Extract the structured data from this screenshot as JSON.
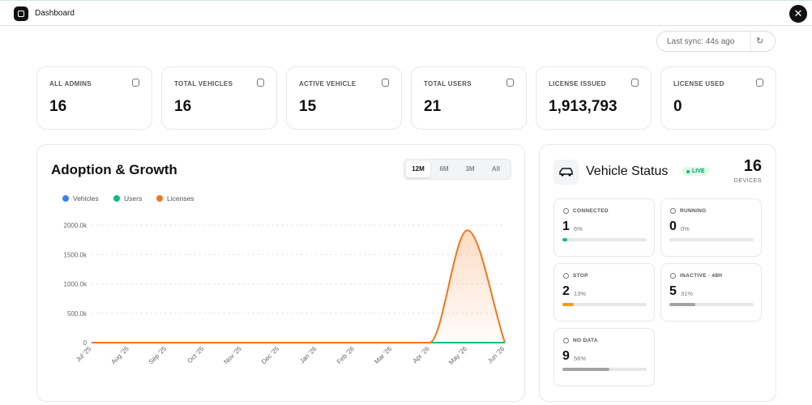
{
  "header": {
    "title": "Dashboard"
  },
  "sync": "Last sync: 44s ago",
  "stats": [
    {
      "label": "ALL ADMINS",
      "value": "16"
    },
    {
      "label": "TOTAL VEHICLES",
      "value": "16"
    },
    {
      "label": "ACTIVE VEHICLE",
      "value": "15"
    },
    {
      "label": "TOTAL USERS",
      "value": "21"
    },
    {
      "label": "LICENSE ISSUED",
      "value": "1,913,793"
    },
    {
      "label": "LICENSE USED",
      "value": "0"
    }
  ],
  "ranges": [
    "12M",
    "6M",
    "3M",
    "All"
  ],
  "chart_data": {
    "type": "line",
    "title": "Adoption & Growth",
    "categories": [
      "Jul '25",
      "Aug '25",
      "Sep '25",
      "Oct '25",
      "Nov '25",
      "Dec '25",
      "Jan '26",
      "Feb '26",
      "Mar '26",
      "Apr '26",
      "May '26",
      "Jun '26"
    ],
    "series": [
      {
        "name": "Vehicles",
        "color": "#3b82f6",
        "values": [
          0,
          0,
          0,
          0,
          0,
          0,
          0,
          0,
          0,
          0,
          16,
          0
        ]
      },
      {
        "name": "Users",
        "color": "#10b981",
        "values": [
          0,
          0,
          0,
          0,
          0,
          0,
          0,
          0,
          0,
          0,
          21,
          0
        ]
      },
      {
        "name": "Licenses",
        "color": "#f97316",
        "values": [
          0,
          0,
          0,
          0,
          0,
          0,
          0,
          0,
          0,
          0,
          1913793,
          0
        ]
      }
    ],
    "ylim": [
      0,
      2000000
    ],
    "yticks": [
      0,
      {
        "value": 500000,
        "label": "500.0k"
      },
      {
        "value": 1000000,
        "label": "1000.0k"
      },
      {
        "value": 1500000,
        "label": "1500.0k"
      },
      {
        "value": 2000000,
        "label": "2000.0k"
      }
    ],
    "grid": true
  },
  "vehicle_status": {
    "title": "Vehicle Status",
    "badge": "LIVE",
    "total": "16",
    "total_label": "DEVICES",
    "tiles": [
      {
        "label": "CONNECTED",
        "count": "1",
        "percent": "6%",
        "color": "#10b981"
      },
      {
        "label": "RUNNING",
        "count": "0",
        "percent": "0%",
        "color": "#a3a3a3"
      },
      {
        "label": "STOP",
        "count": "2",
        "percent": "13%",
        "color": "#f59e0b"
      },
      {
        "label": "INACTIVE · 48H",
        "count": "5",
        "percent": "31%",
        "color": "#a3a3a3"
      },
      {
        "label": "NO DATA",
        "count": "9",
        "percent": "56%",
        "color": "#a3a3a3"
      }
    ]
  }
}
